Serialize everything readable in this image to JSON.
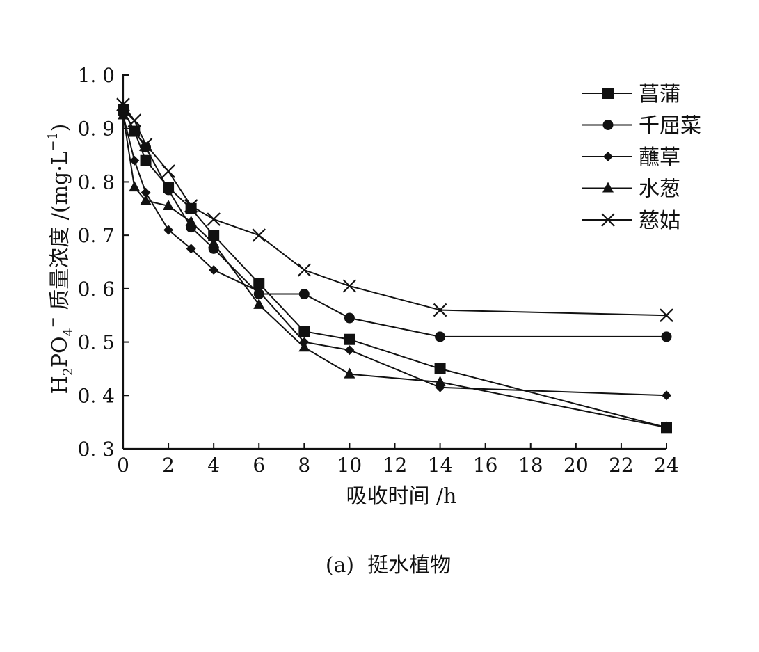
{
  "chart_data": {
    "type": "line",
    "xlabel": "吸收时间 /h",
    "ylabel": {
      "prefix": "H",
      "sub1": "2",
      "mid": "PO",
      "sub2": "4",
      "sup": "−",
      "rest": " 质量浓度 /(mg·L",
      "sup2": "−1",
      "end": ")"
    },
    "caption": "(a)  挺水植物",
    "xlim": [
      0,
      24
    ],
    "ylim": [
      0.3,
      1.0
    ],
    "xticks": [
      0,
      2,
      4,
      6,
      8,
      10,
      12,
      14,
      16,
      18,
      20,
      22,
      24
    ],
    "yticks": [
      0.3,
      0.4,
      0.5,
      0.6,
      0.7,
      0.8,
      0.9,
      1.0
    ],
    "ytick_labels": [
      "0. 3",
      "0. 4",
      "0. 5",
      "0. 6",
      "0. 7",
      "0. 8",
      "0. 9",
      "1. 0"
    ],
    "legend_position": "top-right",
    "series": [
      {
        "name": "菖蒲",
        "marker": "square",
        "x": [
          0,
          0.5,
          1,
          2,
          3,
          4,
          6,
          8,
          10,
          14,
          24
        ],
        "y": [
          0.935,
          0.895,
          0.84,
          0.79,
          0.75,
          0.7,
          0.61,
          0.52,
          0.505,
          0.45,
          0.34
        ]
      },
      {
        "name": "千屈菜",
        "marker": "circle",
        "x": [
          0,
          0.5,
          1,
          2,
          3,
          4,
          6,
          8,
          10,
          14,
          24
        ],
        "y": [
          0.935,
          0.895,
          0.865,
          0.785,
          0.715,
          0.675,
          0.59,
          0.59,
          0.545,
          0.51,
          0.51
        ]
      },
      {
        "name": "蘸草",
        "marker": "diamond",
        "x": [
          0,
          0.5,
          1,
          2,
          3,
          4,
          6,
          8,
          10,
          14,
          24
        ],
        "y": [
          0.925,
          0.84,
          0.78,
          0.71,
          0.675,
          0.635,
          0.595,
          0.5,
          0.485,
          0.415,
          0.4
        ]
      },
      {
        "name": "水葱",
        "marker": "triangle",
        "x": [
          0,
          0.5,
          1,
          2,
          3,
          4,
          6,
          8,
          10,
          14,
          24
        ],
        "y": [
          0.925,
          0.79,
          0.765,
          0.755,
          0.725,
          0.685,
          0.57,
          0.49,
          0.44,
          0.425,
          0.34
        ]
      },
      {
        "name": "慈姑",
        "marker": "x",
        "x": [
          0,
          0.5,
          1,
          2,
          3,
          4,
          6,
          8,
          10,
          14,
          24
        ],
        "y": [
          0.945,
          0.915,
          0.87,
          0.82,
          0.755,
          0.73,
          0.7,
          0.635,
          0.605,
          0.56,
          0.55
        ]
      }
    ]
  }
}
